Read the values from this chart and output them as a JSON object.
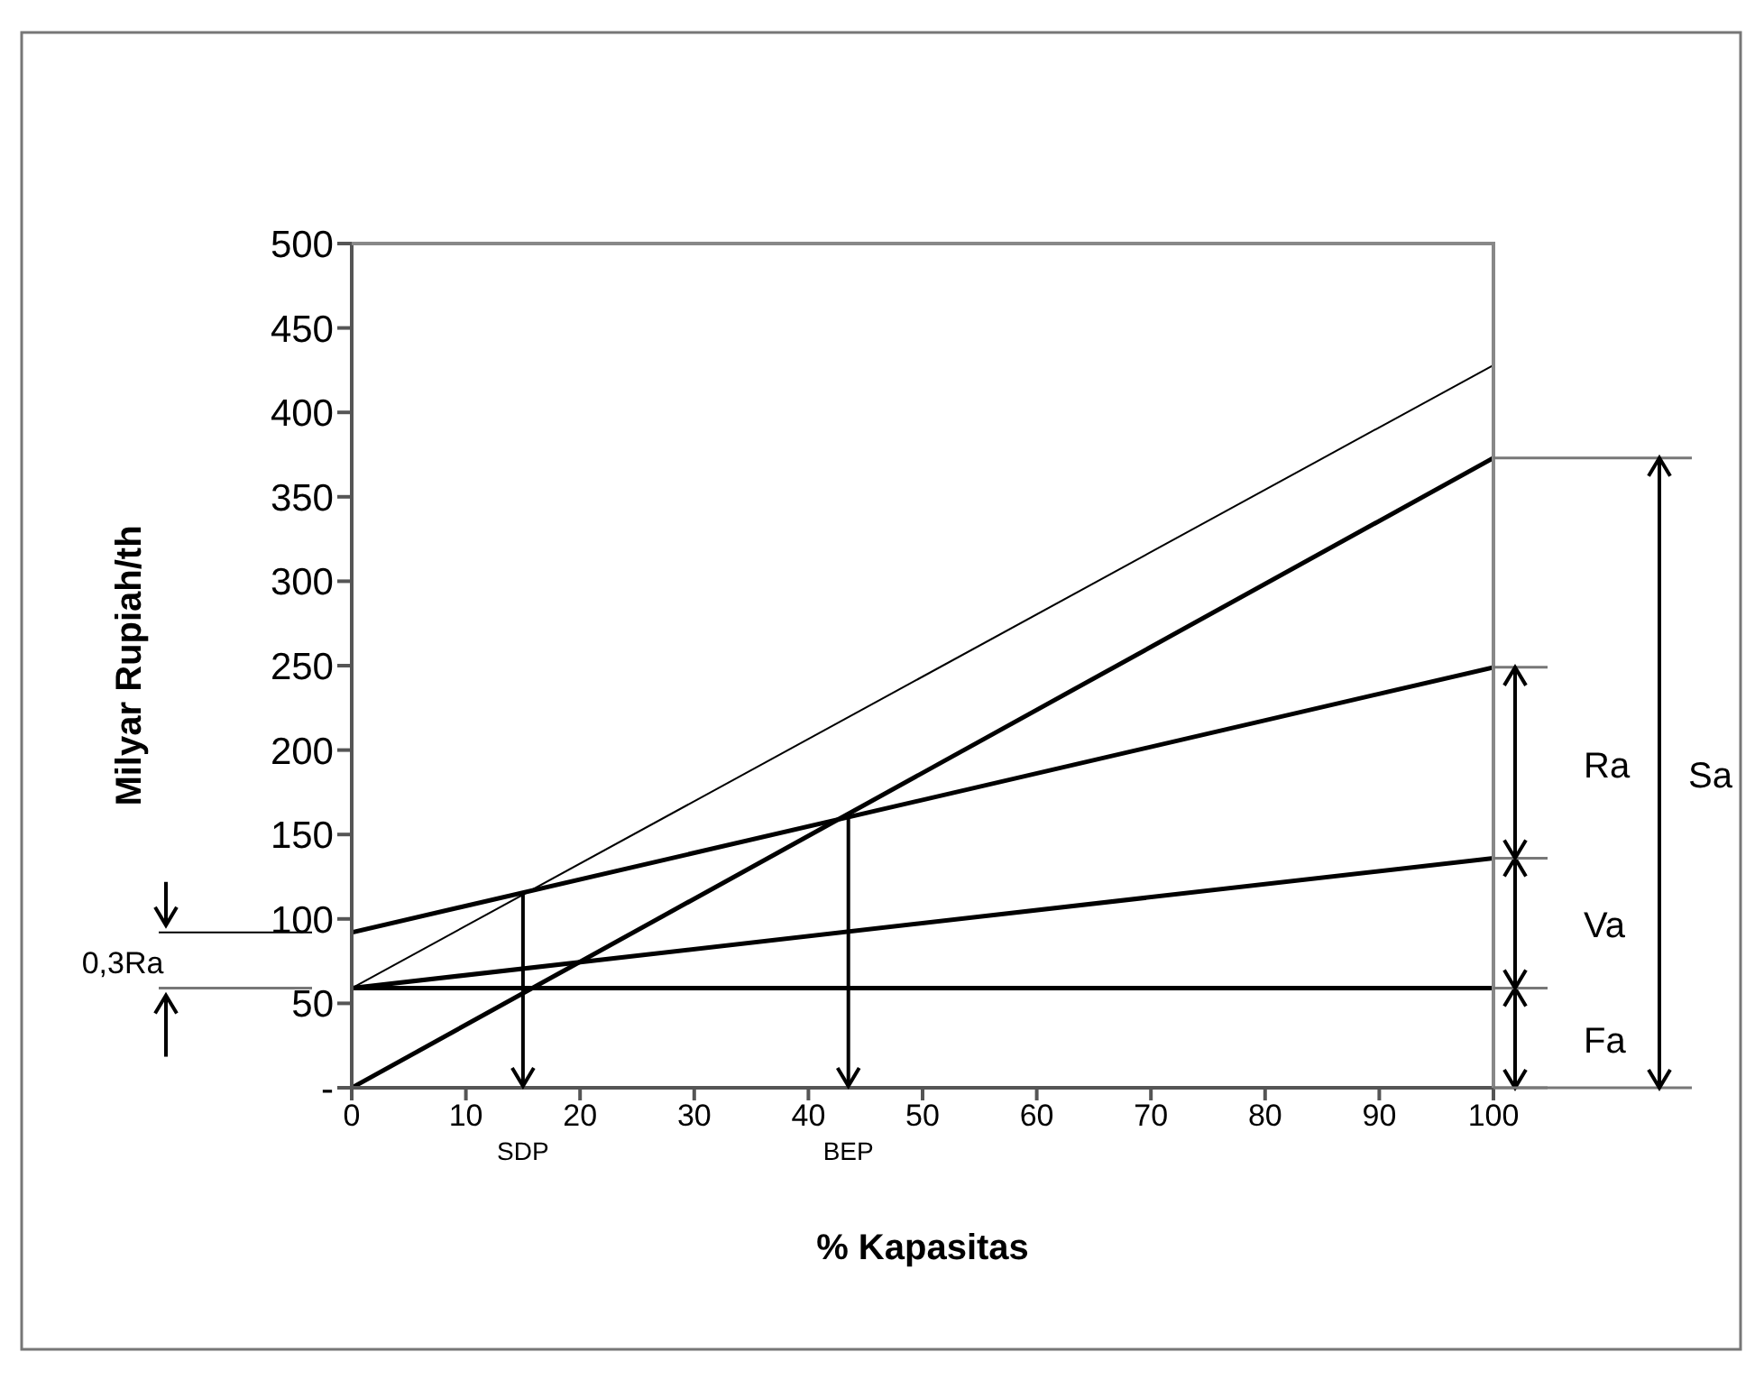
{
  "chart_data": {
    "type": "line",
    "xlabel": "% Kapasitas",
    "ylabel": "Milyar Rupiah/th",
    "x": [
      0,
      100
    ],
    "series": [
      {
        "color": "#000000",
        "values": [
          59,
          59
        ]
      },
      {
        "color": "#000000",
        "values": [
          59,
          136
        ]
      },
      {
        "color": "#000000",
        "values": [
          92,
          249
        ]
      },
      {
        "color": "#000000",
        "values": [
          0,
          373
        ]
      },
      {
        "color": "#000000",
        "values": [
          59,
          428
        ]
      }
    ],
    "xlim": [
      0,
      100
    ],
    "xticks": [
      0,
      10,
      20,
      30,
      40,
      50,
      60,
      70,
      80,
      90,
      100
    ],
    "ylim": [
      0,
      500
    ],
    "yticks": [
      {
        "value": 0,
        "label": "-"
      },
      50,
      100,
      150,
      200,
      250,
      300,
      350,
      400,
      450,
      500
    ],
    "grid": false,
    "legend": false,
    "marker": "none",
    "line_style": "solid",
    "ref_lines": [
      {
        "axis": "x",
        "value": 15,
        "label": "SDP",
        "color": "#000000"
      },
      {
        "axis": "x",
        "value": 43.5,
        "label": "BEP",
        "color": "#000000"
      }
    ],
    "annotations": [
      "Fa",
      "Va",
      "Ra",
      "Sa",
      "0,3Ra"
    ]
  }
}
